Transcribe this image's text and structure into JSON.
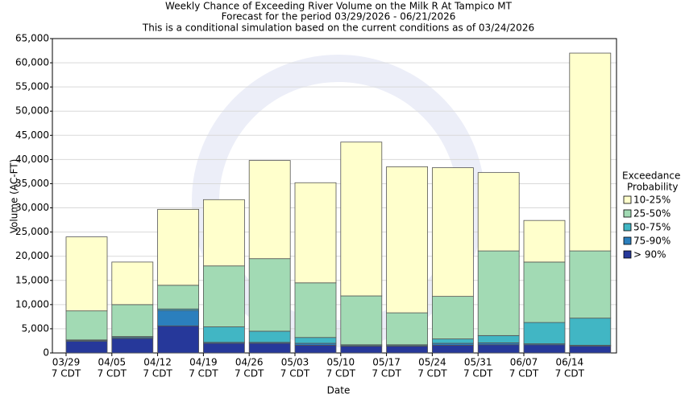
{
  "chart_data": {
    "type": "stacked_bar",
    "title": [
      "Weekly Chance of Exceeding River Volume on the Milk R At Tampico MT",
      "Forecast for the period 03/29/2026 - 06/21/2026",
      "This is a conditional simulation based on the current conditions as of 03/24/2026"
    ],
    "x_label": "Date",
    "y_label": "Volume (AC-FT)",
    "legend_title": [
      "Exceedance",
      "Probability"
    ],
    "categories": [
      [
        "03/29",
        "7 CDT"
      ],
      [
        "04/05",
        "7 CDT"
      ],
      [
        "04/12",
        "7 CDT"
      ],
      [
        "04/19",
        "7 CDT"
      ],
      [
        "04/26",
        "7 CDT"
      ],
      [
        "05/03",
        "7 CDT"
      ],
      [
        "05/10",
        "7 CDT"
      ],
      [
        "05/17",
        "7 CDT"
      ],
      [
        "05/24",
        "7 CDT"
      ],
      [
        "05/31",
        "7 CDT"
      ],
      [
        "06/07",
        "7 CDT"
      ],
      [
        "06/14",
        "7 CDT"
      ]
    ],
    "series": [
      {
        "name": "> 90%",
        "color": "#26389a",
        "values": [
          2400,
          3000,
          5600,
          2000,
          2000,
          1600,
          1400,
          1400,
          1600,
          1700,
          1700,
          1400
        ]
      },
      {
        "name": "75-90%",
        "color": "#2b7fbd",
        "values": [
          200,
          200,
          3200,
          200,
          200,
          400,
          100,
          100,
          400,
          400,
          200,
          200
        ]
      },
      {
        "name": "50-75%",
        "color": "#41b6c4",
        "values": [
          100,
          200,
          300,
          3200,
          2300,
          1200,
          200,
          200,
          900,
          1500,
          4400,
          5600
        ]
      },
      {
        "name": "25-50%",
        "color": "#a2dab4",
        "values": [
          6000,
          6600,
          4900,
          12600,
          15000,
          11300,
          10100,
          6600,
          8800,
          17500,
          12500,
          13900
        ]
      },
      {
        "name": "10-25%",
        "color": "#ffffcc",
        "values": [
          15300,
          8800,
          15700,
          13700,
          20300,
          20700,
          31800,
          30200,
          26600,
          16200,
          8600,
          40900
        ]
      }
    ],
    "ylim": [
      0,
      65000
    ],
    "yticks": [
      0,
      {
        "value": 5000,
        "label": "5,000"
      },
      {
        "value": 10000,
        "label": "10,000"
      },
      {
        "value": 15000,
        "label": "15,000"
      },
      {
        "value": 20000,
        "label": "20,000"
      },
      {
        "value": 25000,
        "label": "25,000"
      },
      {
        "value": 30000,
        "label": "30,000"
      },
      {
        "value": 35000,
        "label": "35,000"
      },
      {
        "value": 40000,
        "label": "40,000"
      },
      {
        "value": 45000,
        "label": "45,000"
      },
      {
        "value": 50000,
        "label": "50,000"
      },
      {
        "value": 55000,
        "label": "55,000"
      },
      {
        "value": 60000,
        "label": "60,000"
      },
      {
        "value": 65000,
        "label": "65,000"
      }
    ],
    "grid": true
  }
}
